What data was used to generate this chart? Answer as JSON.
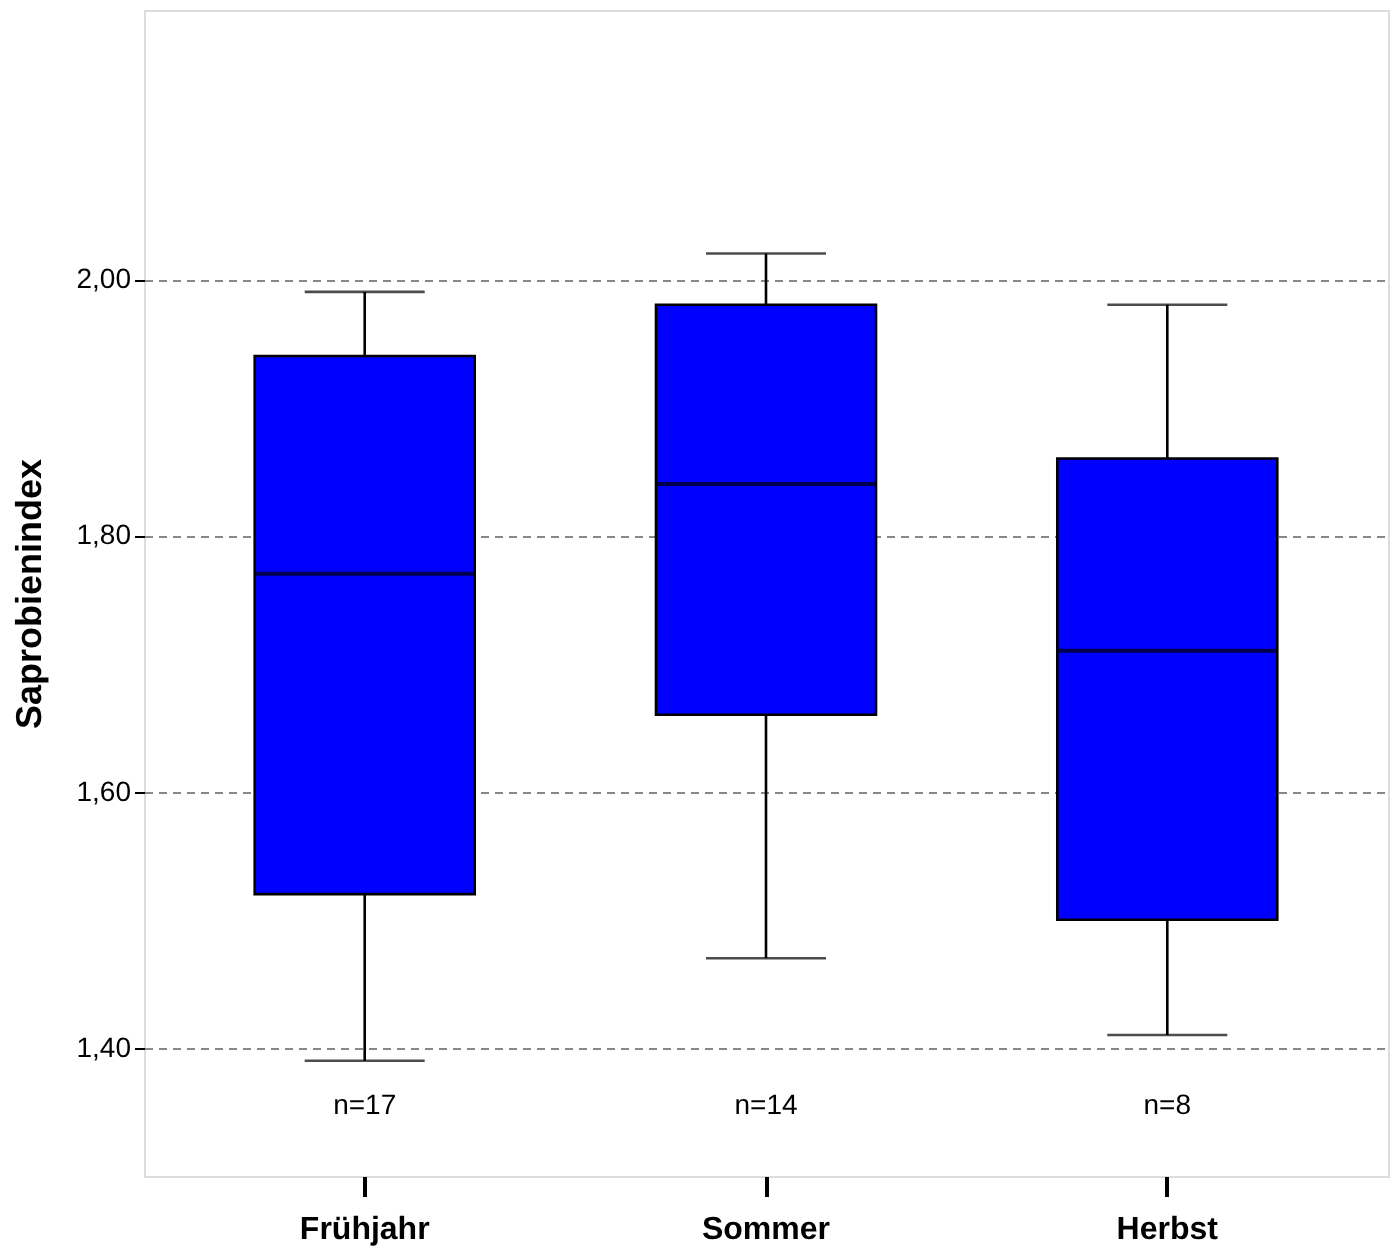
{
  "chart_data": {
    "type": "box",
    "ylabel": "Saprobienindex",
    "categories": [
      "Frühjahr",
      "Sommer",
      "Herbst"
    ],
    "series": [
      {
        "color": "#0000ff",
        "boxes": [
          {
            "low": 1.39,
            "q1": 1.52,
            "median": 1.77,
            "q3": 1.94,
            "high": 1.99
          },
          {
            "low": 1.47,
            "q1": 1.66,
            "median": 1.84,
            "q3": 1.98,
            "high": 2.02
          },
          {
            "low": 1.41,
            "q1": 1.5,
            "median": 1.71,
            "q3": 1.86,
            "high": 1.98
          }
        ]
      }
    ],
    "ylim": [
      1.3,
      2.21
    ],
    "yticks": [
      {
        "value": 1.4,
        "label": "1,40"
      },
      {
        "value": 1.6,
        "label": "1,60"
      },
      {
        "value": 1.8,
        "label": "1,80"
      },
      {
        "value": 2.0,
        "label": "2,00"
      }
    ],
    "grid": "y",
    "line_style": "dashed",
    "annotations": [
      "n=17",
      "n=14",
      "n=8"
    ]
  }
}
